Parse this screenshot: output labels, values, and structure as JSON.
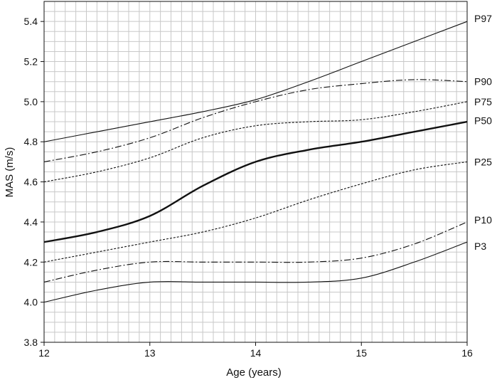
{
  "chart_data": {
    "type": "line",
    "title": "",
    "xlabel": "Age (years)",
    "ylabel": "MAS (m/s)",
    "xlim": [
      12,
      16
    ],
    "ylim": [
      3.8,
      5.5
    ],
    "xticks": [
      "12",
      "13",
      "14",
      "15",
      "16"
    ],
    "yticks": [
      "3.8",
      "4.0",
      "4.2",
      "4.4",
      "4.6",
      "4.8",
      "5.0",
      "5.2",
      "5.4"
    ],
    "grid": true,
    "line_color": "#111111",
    "grid_color": "#c8c8c8",
    "series": [
      {
        "name": "P97",
        "style": "solid",
        "x": [
          12,
          12.5,
          13,
          13.5,
          14,
          14.5,
          15,
          15.5,
          16
        ],
        "values": [
          4.8,
          4.85,
          4.9,
          4.95,
          5.01,
          5.1,
          5.2,
          5.3,
          5.4
        ]
      },
      {
        "name": "P90",
        "style": "dashdot",
        "x": [
          12,
          12.5,
          13,
          13.5,
          14,
          14.5,
          15,
          15.5,
          16
        ],
        "values": [
          4.7,
          4.75,
          4.82,
          4.92,
          5.0,
          5.06,
          5.09,
          5.11,
          5.1
        ]
      },
      {
        "name": "P75",
        "style": "dotted",
        "x": [
          12,
          12.5,
          13,
          13.5,
          14,
          14.5,
          15,
          15.5,
          16
        ],
        "values": [
          4.6,
          4.65,
          4.72,
          4.82,
          4.88,
          4.9,
          4.91,
          4.95,
          5.0
        ]
      },
      {
        "name": "P50",
        "style": "bold",
        "x": [
          12,
          12.5,
          13,
          13.5,
          14,
          14.5,
          15,
          15.5,
          16
        ],
        "values": [
          4.3,
          4.35,
          4.43,
          4.58,
          4.7,
          4.76,
          4.8,
          4.85,
          4.9
        ]
      },
      {
        "name": "P25",
        "style": "dotted",
        "x": [
          12,
          12.5,
          13,
          13.5,
          14,
          14.5,
          15,
          15.5,
          16
        ],
        "values": [
          4.2,
          4.25,
          4.3,
          4.35,
          4.42,
          4.51,
          4.59,
          4.66,
          4.7
        ]
      },
      {
        "name": "P10",
        "style": "dashdot",
        "x": [
          12,
          12.5,
          13,
          13.5,
          14,
          14.5,
          15,
          15.5,
          16
        ],
        "values": [
          4.1,
          4.16,
          4.2,
          4.2,
          4.2,
          4.2,
          4.22,
          4.29,
          4.4
        ]
      },
      {
        "name": "P3",
        "style": "solid",
        "x": [
          12,
          12.5,
          13,
          13.5,
          14,
          14.5,
          15,
          15.5,
          16
        ],
        "values": [
          4.0,
          4.06,
          4.1,
          4.1,
          4.1,
          4.1,
          4.12,
          4.2,
          4.3
        ]
      }
    ],
    "series_label_y": {
      "P97": 5.415,
      "P90": 5.1,
      "P75": 5.0,
      "P50": 4.905,
      "P25": 4.7,
      "P10": 4.41,
      "P3": 4.28
    }
  }
}
